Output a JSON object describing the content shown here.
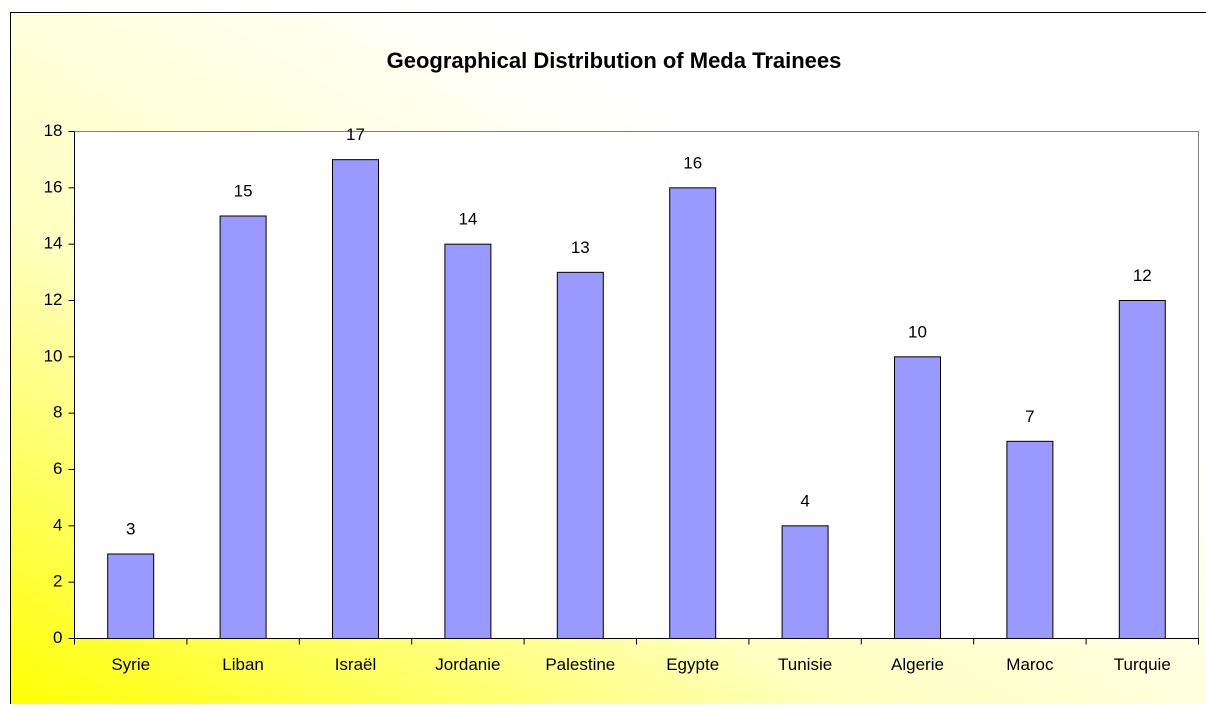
{
  "chart_data": {
    "type": "bar",
    "title": "Geographical Distribution of Meda Trainees",
    "categories": [
      "Syrie",
      "Liban",
      "Israël",
      "Jordanie",
      "Palestine",
      "Egypte",
      "Tunisie",
      "Algerie",
      "Maroc",
      "Turquie"
    ],
    "values": [
      3,
      15,
      17,
      14,
      13,
      16,
      4,
      10,
      7,
      12
    ],
    "color": "#9999ff",
    "ylim": [
      0,
      18
    ],
    "yticks": [
      0,
      2,
      4,
      6,
      8,
      10,
      12,
      14,
      16,
      18
    ],
    "grid": false
  }
}
